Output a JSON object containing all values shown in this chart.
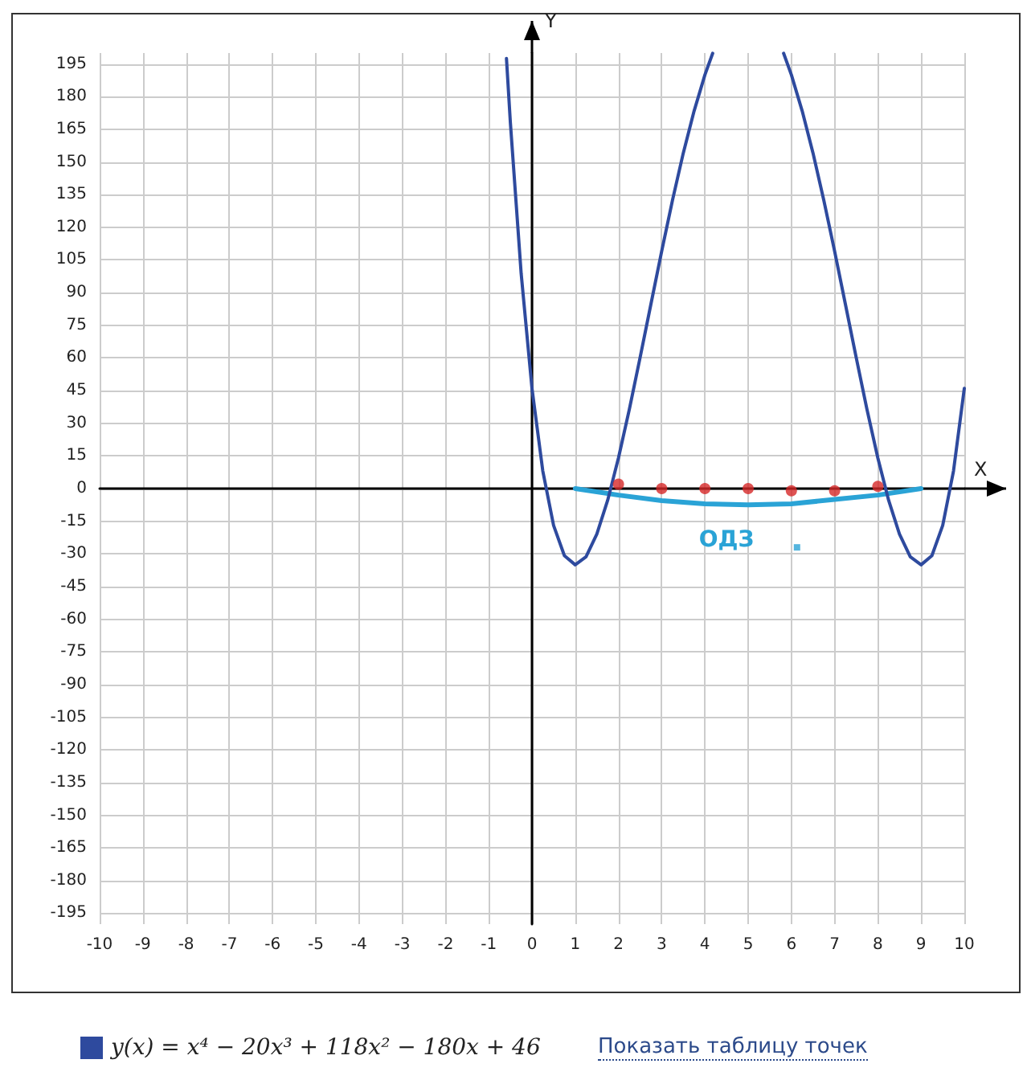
{
  "chart_data": {
    "type": "line",
    "xlabel": "X",
    "ylabel": "Y",
    "xlim": [
      -10,
      10
    ],
    "xticks": [
      -10,
      -9,
      -8,
      -7,
      -6,
      -5,
      -4,
      -3,
      -2,
      -1,
      0,
      1,
      2,
      3,
      4,
      5,
      6,
      7,
      8,
      9,
      10
    ],
    "ylim": [
      -200,
      200
    ],
    "yticks": [
      -195,
      -180,
      -165,
      -150,
      -135,
      -120,
      -105,
      -90,
      -75,
      -60,
      -45,
      -30,
      -15,
      0,
      15,
      30,
      45,
      60,
      75,
      90,
      105,
      120,
      135,
      150,
      165,
      180,
      195
    ],
    "grid": true,
    "legend": "bottom",
    "series": [
      {
        "name": "y(x) = x⁴ − 20x³ + 118x² − 180x + 46",
        "color": "#2e4a9e",
        "marker": "none",
        "x": [
          -0.59,
          -0.5,
          -0.25,
          0,
          0.25,
          0.5,
          0.75,
          1,
          1.25,
          1.5,
          1.75,
          2,
          2.25,
          2.5,
          2.75,
          3,
          3.25,
          3.5,
          3.75,
          4,
          4.18,
          5,
          5.82,
          6,
          6.25,
          6.5,
          6.75,
          7,
          7.25,
          7.5,
          7.75,
          8,
          8.25,
          8.5,
          8.75,
          9,
          9.25,
          9.5,
          9.75,
          10
        ],
        "values": [
          197.5,
          168.1,
          98.7,
          46,
          8.1,
          -16.9,
          -30.8,
          -35,
          -31.3,
          -20.9,
          -5.4,
          14,
          36.2,
          60.1,
          84.6,
          109,
          132.4,
          154.1,
          173.4,
          190,
          199.9,
          null,
          199.9,
          190,
          173.4,
          154.1,
          132.4,
          109,
          84.6,
          60.1,
          36.2,
          14,
          -5.4,
          -20.9,
          -31.3,
          -35,
          -30.8,
          -16.9,
          8.1,
          46
        ]
      },
      {
        "color": "#2aa3d6",
        "marker": "none",
        "x": [
          1,
          2,
          3,
          4,
          5,
          6,
          7,
          8,
          9
        ],
        "values": [
          0,
          -3,
          -5.5,
          -7,
          -7.5,
          -7,
          -5,
          -3,
          0
        ]
      },
      {
        "type": "scatter",
        "color": "#d62828",
        "marker": "circle",
        "x": [
          2,
          3,
          4,
          5,
          6,
          7,
          8
        ],
        "values": [
          2,
          0,
          0,
          0,
          -1,
          -1,
          1
        ]
      },
      {
        "type": "scatter",
        "color": "#2aa3d6",
        "marker": "square",
        "x": [
          6.13
        ],
        "values": [
          -27
        ]
      }
    ],
    "annotations": [
      "ОДЗ",
      "Показать таблицу точек"
    ]
  }
}
